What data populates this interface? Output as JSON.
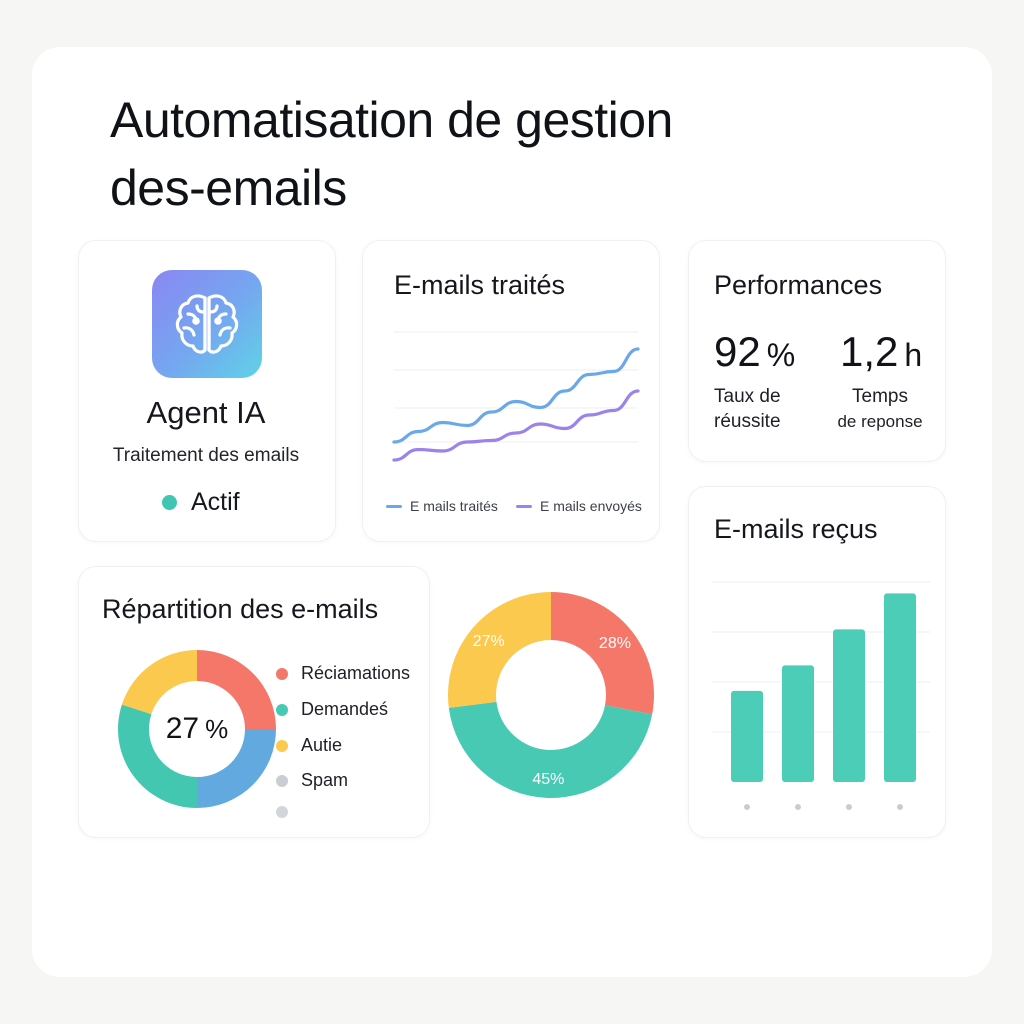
{
  "page": {
    "title_line1": "Automatisation de gestion",
    "title_line2": "des-emails"
  },
  "agent": {
    "name": "Agent IA",
    "subtitle": "Traitement des emails",
    "status": "Actif",
    "icon": "brain-icon"
  },
  "emails_processed": {
    "title": "E-mails traités",
    "legend": [
      "E mails traités",
      "E mails envoyés"
    ]
  },
  "performance": {
    "title": "Performances",
    "success_value": "92",
    "success_unit": "%",
    "success_label_1": "Taux de",
    "success_label_2": "réussite",
    "time_value": "1,2",
    "time_unit": "h",
    "time_label_1": "Temps",
    "time_label_2": "de reponse"
  },
  "emails_received": {
    "title": "E-mails reçus"
  },
  "distribution": {
    "title": "Répartition des e-mails",
    "center_value": "27",
    "center_unit": "%",
    "legend": [
      "Réciamations",
      "Demandeś",
      "Autie",
      "Spam"
    ],
    "colors": [
      "#f5776a",
      "#48c9b4",
      "#fcc94f",
      "#c9cdd4"
    ]
  },
  "chart_data": [
    {
      "type": "line",
      "x": [
        0,
        1,
        2,
        3,
        4,
        5,
        6,
        7,
        8,
        9,
        10
      ],
      "series": [
        {
          "name": "E mails traités",
          "color": "#6aa8e9",
          "values": [
            20,
            27,
            33,
            31,
            40,
            47,
            43,
            54,
            65,
            67,
            82
          ]
        },
        {
          "name": "E mails envoyés",
          "color": "#9c83ea",
          "values": [
            8,
            15,
            14,
            20,
            21,
            26,
            32,
            29,
            38,
            41,
            54
          ]
        }
      ],
      "ylim": [
        0,
        100
      ],
      "grid": true
    },
    {
      "type": "bar",
      "categories": [
        "",
        "",
        "",
        ""
      ],
      "values": [
        43,
        55,
        72,
        89
      ],
      "ylim": [
        0,
        100
      ],
      "grid": true,
      "color": "#4ccdb8"
    },
    {
      "type": "pie",
      "donut": true,
      "labels": [
        "",
        "",
        "",
        ""
      ],
      "values": [
        25,
        25,
        30,
        20
      ],
      "colors": [
        "#f5776a",
        "#62a9e0",
        "#44c7b1",
        "#fcc94f"
      ]
    },
    {
      "type": "pie",
      "donut": true,
      "labels": [
        "28%",
        "45%",
        "27%"
      ],
      "values": [
        28,
        45,
        27
      ],
      "colors": [
        "#f5776a",
        "#48c9b4",
        "#fcc94f"
      ]
    }
  ]
}
